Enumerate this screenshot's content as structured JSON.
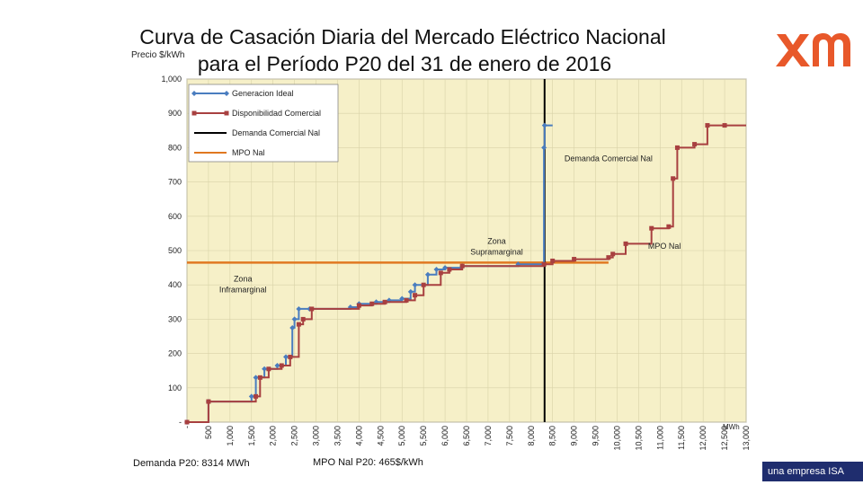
{
  "title_line1": "Curva de Casación Diaria del Mercado Eléctrico Nacional",
  "title_line2": "para el Período P20 del 31 de enero de 2016",
  "footer": {
    "tagline": "una empresa ISA",
    "demanda_note": "Demanda P20: 8314 MWh",
    "mpo_note": "MPO Nal P20: 465$/kWh"
  },
  "colors": {
    "plot_bg": "#f6f0c8",
    "grid": "#d8d2a8",
    "ideal": "#4a7dbf",
    "comercial": "#a84040",
    "demanda": "#000000",
    "mpo": "#e07820",
    "logo": "#e8582a",
    "footer": "#1f2d6e"
  },
  "chart_data": {
    "type": "line",
    "title": "Curva de Casación Diaria del Mercado Eléctrico Nacional para el Período P20 del 31 de enero de 2016",
    "ylabel": "Precio $/kWh",
    "xlabel": "MWh",
    "xlim": [
      0,
      13000
    ],
    "ylim": [
      0,
      1000
    ],
    "grid": true,
    "legend_position": "top-left",
    "x_ticks": [
      "-",
      "500",
      "1,000",
      "1,500",
      "2,000",
      "2,500",
      "3,000",
      "3,500",
      "4,000",
      "4,500",
      "5,000",
      "5,500",
      "6,000",
      "6,500",
      "7,000",
      "7,500",
      "8,000",
      "8,500",
      "9,000",
      "9,500",
      "10,000",
      "10,500",
      "11,000",
      "11,500",
      "12,000",
      "12,500",
      "13,000"
    ],
    "y_ticks": [
      "-",
      "100",
      "200",
      "300",
      "400",
      "500",
      "600",
      "700",
      "800",
      "900",
      "1,000"
    ],
    "series": [
      {
        "name": "Generacion Ideal",
        "points": [
          [
            0,
            0
          ],
          [
            500,
            0
          ],
          [
            500,
            60
          ],
          [
            1500,
            60
          ],
          [
            1500,
            75
          ],
          [
            1600,
            75
          ],
          [
            1600,
            130
          ],
          [
            1800,
            130
          ],
          [
            1800,
            155
          ],
          [
            2100,
            155
          ],
          [
            2100,
            165
          ],
          [
            2300,
            165
          ],
          [
            2300,
            190
          ],
          [
            2450,
            190
          ],
          [
            2450,
            275
          ],
          [
            2500,
            275
          ],
          [
            2500,
            300
          ],
          [
            2600,
            300
          ],
          [
            2600,
            330
          ],
          [
            2850,
            330
          ],
          [
            2850,
            330
          ],
          [
            3800,
            330
          ],
          [
            3800,
            335
          ],
          [
            4000,
            335
          ],
          [
            4000,
            345
          ],
          [
            4400,
            345
          ],
          [
            4400,
            350
          ],
          [
            4700,
            350
          ],
          [
            4700,
            355
          ],
          [
            5000,
            355
          ],
          [
            5000,
            360
          ],
          [
            5200,
            360
          ],
          [
            5200,
            380
          ],
          [
            5300,
            380
          ],
          [
            5300,
            400
          ],
          [
            5600,
            400
          ],
          [
            5600,
            430
          ],
          [
            5800,
            430
          ],
          [
            5800,
            445
          ],
          [
            6000,
            445
          ],
          [
            6000,
            450
          ],
          [
            6400,
            450
          ],
          [
            6400,
            455
          ],
          [
            7700,
            455
          ],
          [
            7700,
            460
          ],
          [
            8300,
            460
          ],
          [
            8300,
            800
          ],
          [
            8314,
            800
          ],
          [
            8314,
            865
          ],
          [
            8500,
            865
          ]
        ]
      },
      {
        "name": "Disponibilidad Comercial",
        "points": [
          [
            0,
            0
          ],
          [
            500,
            0
          ],
          [
            500,
            60
          ],
          [
            1600,
            60
          ],
          [
            1600,
            75
          ],
          [
            1700,
            75
          ],
          [
            1700,
            130
          ],
          [
            1900,
            130
          ],
          [
            1900,
            155
          ],
          [
            2200,
            155
          ],
          [
            2200,
            165
          ],
          [
            2400,
            165
          ],
          [
            2400,
            190
          ],
          [
            2600,
            190
          ],
          [
            2600,
            285
          ],
          [
            2700,
            285
          ],
          [
            2700,
            300
          ],
          [
            2900,
            300
          ],
          [
            2900,
            330
          ],
          [
            4000,
            330
          ],
          [
            4000,
            340
          ],
          [
            4300,
            340
          ],
          [
            4300,
            345
          ],
          [
            4600,
            345
          ],
          [
            4600,
            350
          ],
          [
            5100,
            350
          ],
          [
            5100,
            355
          ],
          [
            5300,
            355
          ],
          [
            5300,
            370
          ],
          [
            5500,
            370
          ],
          [
            5500,
            400
          ],
          [
            5900,
            400
          ],
          [
            5900,
            435
          ],
          [
            6100,
            435
          ],
          [
            6100,
            445
          ],
          [
            6400,
            445
          ],
          [
            6400,
            455
          ],
          [
            8300,
            455
          ],
          [
            8300,
            460
          ],
          [
            8500,
            460
          ],
          [
            8500,
            470
          ],
          [
            9000,
            470
          ],
          [
            9000,
            475
          ],
          [
            9800,
            475
          ],
          [
            9800,
            480
          ],
          [
            9900,
            480
          ],
          [
            9900,
            490
          ],
          [
            10200,
            490
          ],
          [
            10200,
            520
          ],
          [
            10800,
            520
          ],
          [
            10800,
            565
          ],
          [
            11200,
            565
          ],
          [
            11200,
            570
          ],
          [
            11300,
            570
          ],
          [
            11300,
            710
          ],
          [
            11400,
            710
          ],
          [
            11400,
            800
          ],
          [
            11800,
            800
          ],
          [
            11800,
            810
          ],
          [
            12100,
            810
          ],
          [
            12100,
            865
          ],
          [
            12500,
            865
          ],
          [
            12500,
            865
          ],
          [
            13000,
            865
          ]
        ]
      }
    ],
    "demanda_comercial_nal": 8314,
    "mpo_nal": 465,
    "legend": [
      "Generacion Ideal",
      "Disponibilidad Comercial",
      "Demanda Comercial Nal",
      "MPO Nal"
    ],
    "annotations": [
      {
        "text": "Demanda Comercial Nal",
        "x": 9800,
        "y": 760
      },
      {
        "text": "Zona Supramarginal",
        "x": 7200,
        "y": 520
      },
      {
        "text": "MPO Nal",
        "x": 11100,
        "y": 505
      },
      {
        "text": "Zona Inframarginal",
        "x": 1300,
        "y": 410
      }
    ]
  }
}
